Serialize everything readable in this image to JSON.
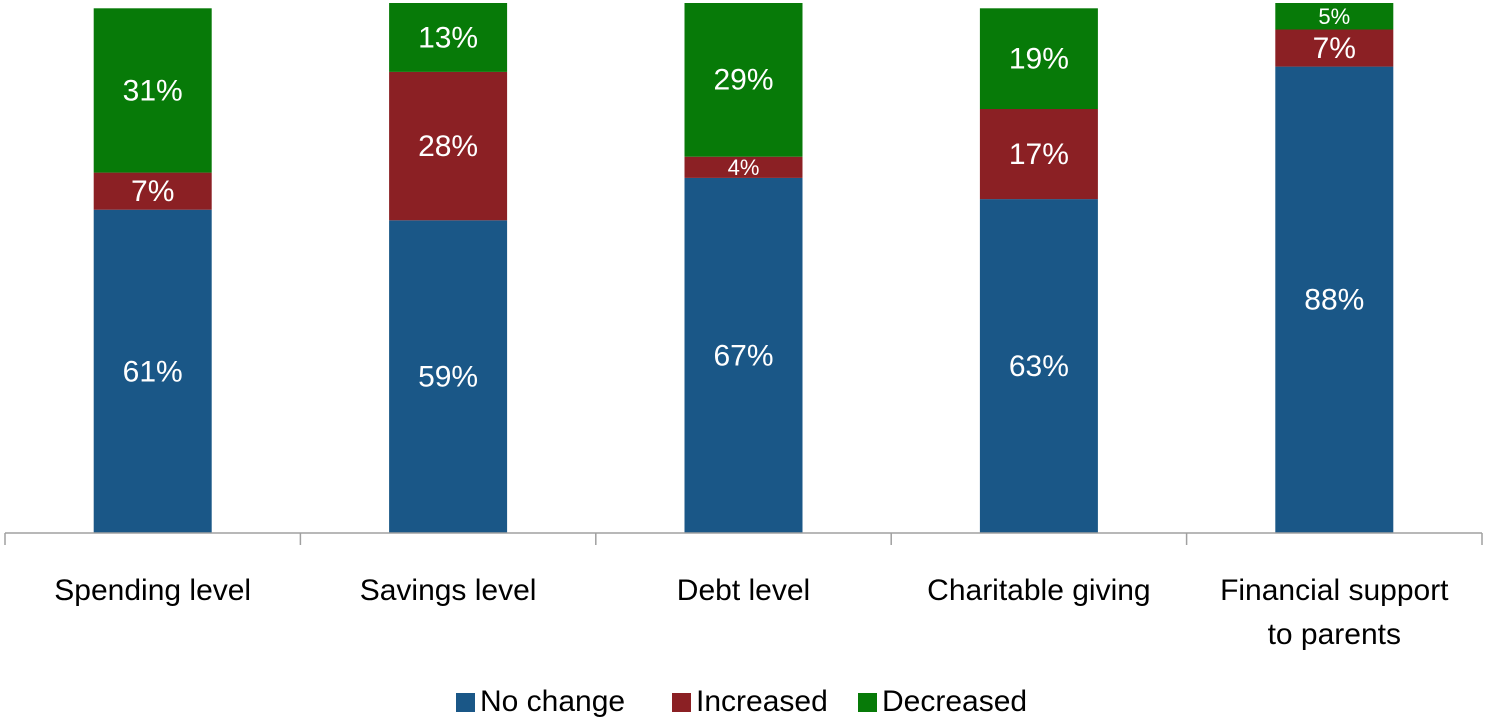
{
  "chart_data": {
    "type": "bar",
    "stacked": true,
    "categories": [
      [
        "Spending level"
      ],
      [
        "Savings level"
      ],
      [
        "Debt level"
      ],
      [
        "Charitable giving"
      ],
      [
        "Financial support",
        "to parents"
      ]
    ],
    "series": [
      {
        "name": "No change",
        "color": "#1a5787",
        "values": [
          61,
          59,
          67,
          63,
          88
        ],
        "labels": [
          "61%",
          "59%",
          "67%",
          "63%",
          "88%"
        ]
      },
      {
        "name": "Increased",
        "color": "#8b2024",
        "values": [
          7,
          28,
          4,
          17,
          7
        ],
        "labels": [
          "7%",
          "28%",
          "4%",
          "17%",
          "7%"
        ]
      },
      {
        "name": "Decreased",
        "color": "#077a08",
        "values": [
          31,
          13,
          29,
          19,
          5
        ],
        "labels": [
          "31%",
          "13%",
          "29%",
          "19%",
          "5%"
        ]
      }
    ],
    "ylim": [
      0,
      100
    ],
    "grid": false,
    "legend_position": "bottom",
    "axis_color": "#a0a0a0"
  }
}
